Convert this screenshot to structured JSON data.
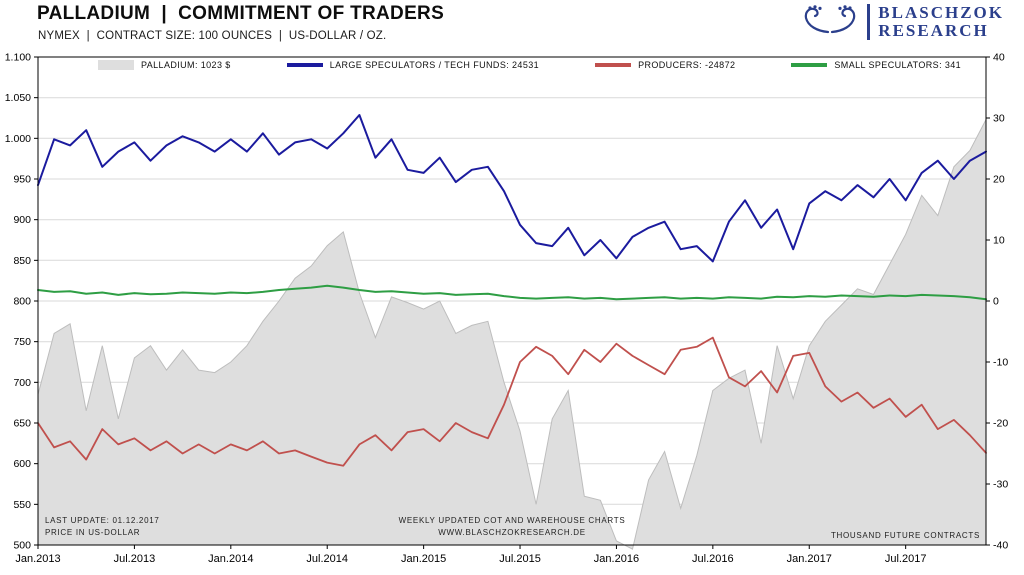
{
  "header": {
    "title": "PALLADIUM  |  COMMITMENT OF TRADERS",
    "subtitle": "NYMEX  |  CONTRACT SIZE: 100 OUNCES  |  US-DOLLAR / OZ.",
    "logo": {
      "line1": "BLASCHZOK",
      "line2": "RESEARCH",
      "color": "#2b3f8c"
    }
  },
  "footer": {
    "last_update": "LAST UPDATE: 01.12.2017",
    "price_note": "PRICE IN US-DOLLAR",
    "center_line1": "WEEKLY  UPDATED  COT  AND  WAREHOUSE  CHARTS",
    "center_line2": "WWW.BLASCHZOKRESEARCH.DE",
    "right_note": "THOUSAND  FUTURE  CONTRACTS"
  },
  "chart_data": {
    "type": "area+line",
    "title": "PALLADIUM | COMMITMENT OF TRADERS",
    "x_start": "Jan 2013",
    "x_end": "Dec 2017",
    "x_unit": "month",
    "grid_color": "#d9d9d9",
    "legend_position": "top-inside",
    "last_values": {
      "palladium_usd": 1023,
      "large_speculators": 24531,
      "producers": -24872,
      "small_speculators": 341
    },
    "left_axis": {
      "min": 500,
      "max": 1100,
      "step": 50,
      "labels": [
        "1.100",
        "1.050",
        "1.000",
        "950",
        "900",
        "850",
        "800",
        "750",
        "700",
        "650",
        "600",
        "550",
        "500"
      ]
    },
    "right_axis": {
      "min": -40,
      "max": 40,
      "step": 10,
      "labels": [
        "40",
        "30",
        "20",
        "10",
        "0",
        "-10",
        "-20",
        "-30",
        "-40"
      ]
    },
    "x_ticks": [
      {
        "label": "Jan.2013",
        "month_index": 0
      },
      {
        "label": "Jul.2013",
        "month_index": 6
      },
      {
        "label": "Jan.2014",
        "month_index": 12
      },
      {
        "label": "Jul.2014",
        "month_index": 18
      },
      {
        "label": "Jan.2015",
        "month_index": 24
      },
      {
        "label": "Jul.2015",
        "month_index": 30
      },
      {
        "label": "Jan.2016",
        "month_index": 36
      },
      {
        "label": "Jul.2016",
        "month_index": 42
      },
      {
        "label": "Jan.2017",
        "month_index": 48
      },
      {
        "label": "Jul.2017",
        "month_index": 54
      }
    ],
    "series": [
      {
        "id": "palladium",
        "name": "PALLADIUM",
        "legend": "PALLADIUM: 1023 $",
        "axis": "left",
        "style": "area",
        "fill": "#dedede",
        "color": "#bdbdbd",
        "values": [
          685,
          760,
          772,
          665,
          745,
          655,
          730,
          745,
          715,
          740,
          715,
          712,
          725,
          745,
          775,
          800,
          828,
          843,
          868,
          885,
          810,
          755,
          805,
          798,
          790,
          800,
          760,
          770,
          775,
          700,
          640,
          550,
          655,
          690,
          560,
          555,
          505,
          495,
          580,
          615,
          545,
          610,
          690,
          705,
          715,
          625,
          745,
          680,
          745,
          775,
          795,
          815,
          808,
          845,
          882,
          930,
          905,
          965,
          985,
          1023
        ]
      },
      {
        "id": "large_speculators",
        "name": "LARGE SPECULATORS / TECH FUNDS",
        "legend": "LARGE SPECULATORS / TECH FUNDS:  24531",
        "axis": "right",
        "style": "line",
        "color": "#1b1b9e",
        "width": 2,
        "values": [
          19,
          26.5,
          25.5,
          28,
          22,
          24.5,
          26,
          23,
          25.5,
          27,
          26,
          24.5,
          26.5,
          24.5,
          27.5,
          24,
          26,
          26.5,
          25,
          27.5,
          30.5,
          23.5,
          26.5,
          21.5,
          21,
          23.5,
          19.5,
          21.5,
          22,
          18,
          12.5,
          9.5,
          9,
          12,
          7.5,
          10,
          7,
          10.5,
          12,
          13,
          8.5,
          9,
          6.5,
          13,
          16.5,
          12,
          15,
          8.5,
          16,
          18,
          16.5,
          19,
          17,
          20,
          16.5,
          21,
          23,
          20,
          23,
          24.5
        ]
      },
      {
        "id": "producers",
        "name": "PRODUCERS",
        "legend": "PRODUCERS: -24872",
        "axis": "right",
        "style": "line",
        "color": "#c0504d",
        "width": 1.8,
        "values": [
          -20,
          -24,
          -23,
          -26,
          -21,
          -23.5,
          -22.5,
          -24.5,
          -23,
          -25,
          -23.5,
          -25,
          -23.5,
          -24.5,
          -23,
          -25,
          -24.5,
          -25.5,
          -26.5,
          -27,
          -23.5,
          -22,
          -24.5,
          -21.5,
          -21,
          -23,
          -20,
          -21.5,
          -22.5,
          -17,
          -10,
          -7.5,
          -9,
          -12,
          -8,
          -10,
          -7,
          -9,
          -10.5,
          -12,
          -8,
          -7.5,
          -6,
          -12.5,
          -14,
          -11.5,
          -15,
          -9,
          -8.5,
          -14,
          -16.5,
          -15,
          -17.5,
          -16,
          -19,
          -17,
          -21,
          -19.5,
          -22,
          -24.9
        ]
      },
      {
        "id": "small_speculators",
        "name": "SMALL SPECULATORS",
        "legend": "SMALL SPECULATORS: 341",
        "axis": "right",
        "style": "line",
        "color": "#2e9e44",
        "width": 2,
        "values": [
          1.8,
          1.5,
          1.6,
          1.2,
          1.4,
          1.0,
          1.3,
          1.1,
          1.2,
          1.4,
          1.3,
          1.2,
          1.4,
          1.3,
          1.5,
          1.8,
          2.0,
          2.2,
          2.5,
          2.2,
          1.8,
          1.5,
          1.6,
          1.4,
          1.2,
          1.3,
          1.0,
          1.1,
          1.2,
          0.8,
          0.5,
          0.4,
          0.5,
          0.6,
          0.4,
          0.5,
          0.3,
          0.4,
          0.5,
          0.6,
          0.4,
          0.5,
          0.4,
          0.6,
          0.5,
          0.4,
          0.7,
          0.6,
          0.8,
          0.7,
          0.9,
          0.8,
          0.7,
          0.9,
          0.8,
          1.0,
          0.9,
          0.8,
          0.6,
          0.3
        ]
      }
    ]
  }
}
